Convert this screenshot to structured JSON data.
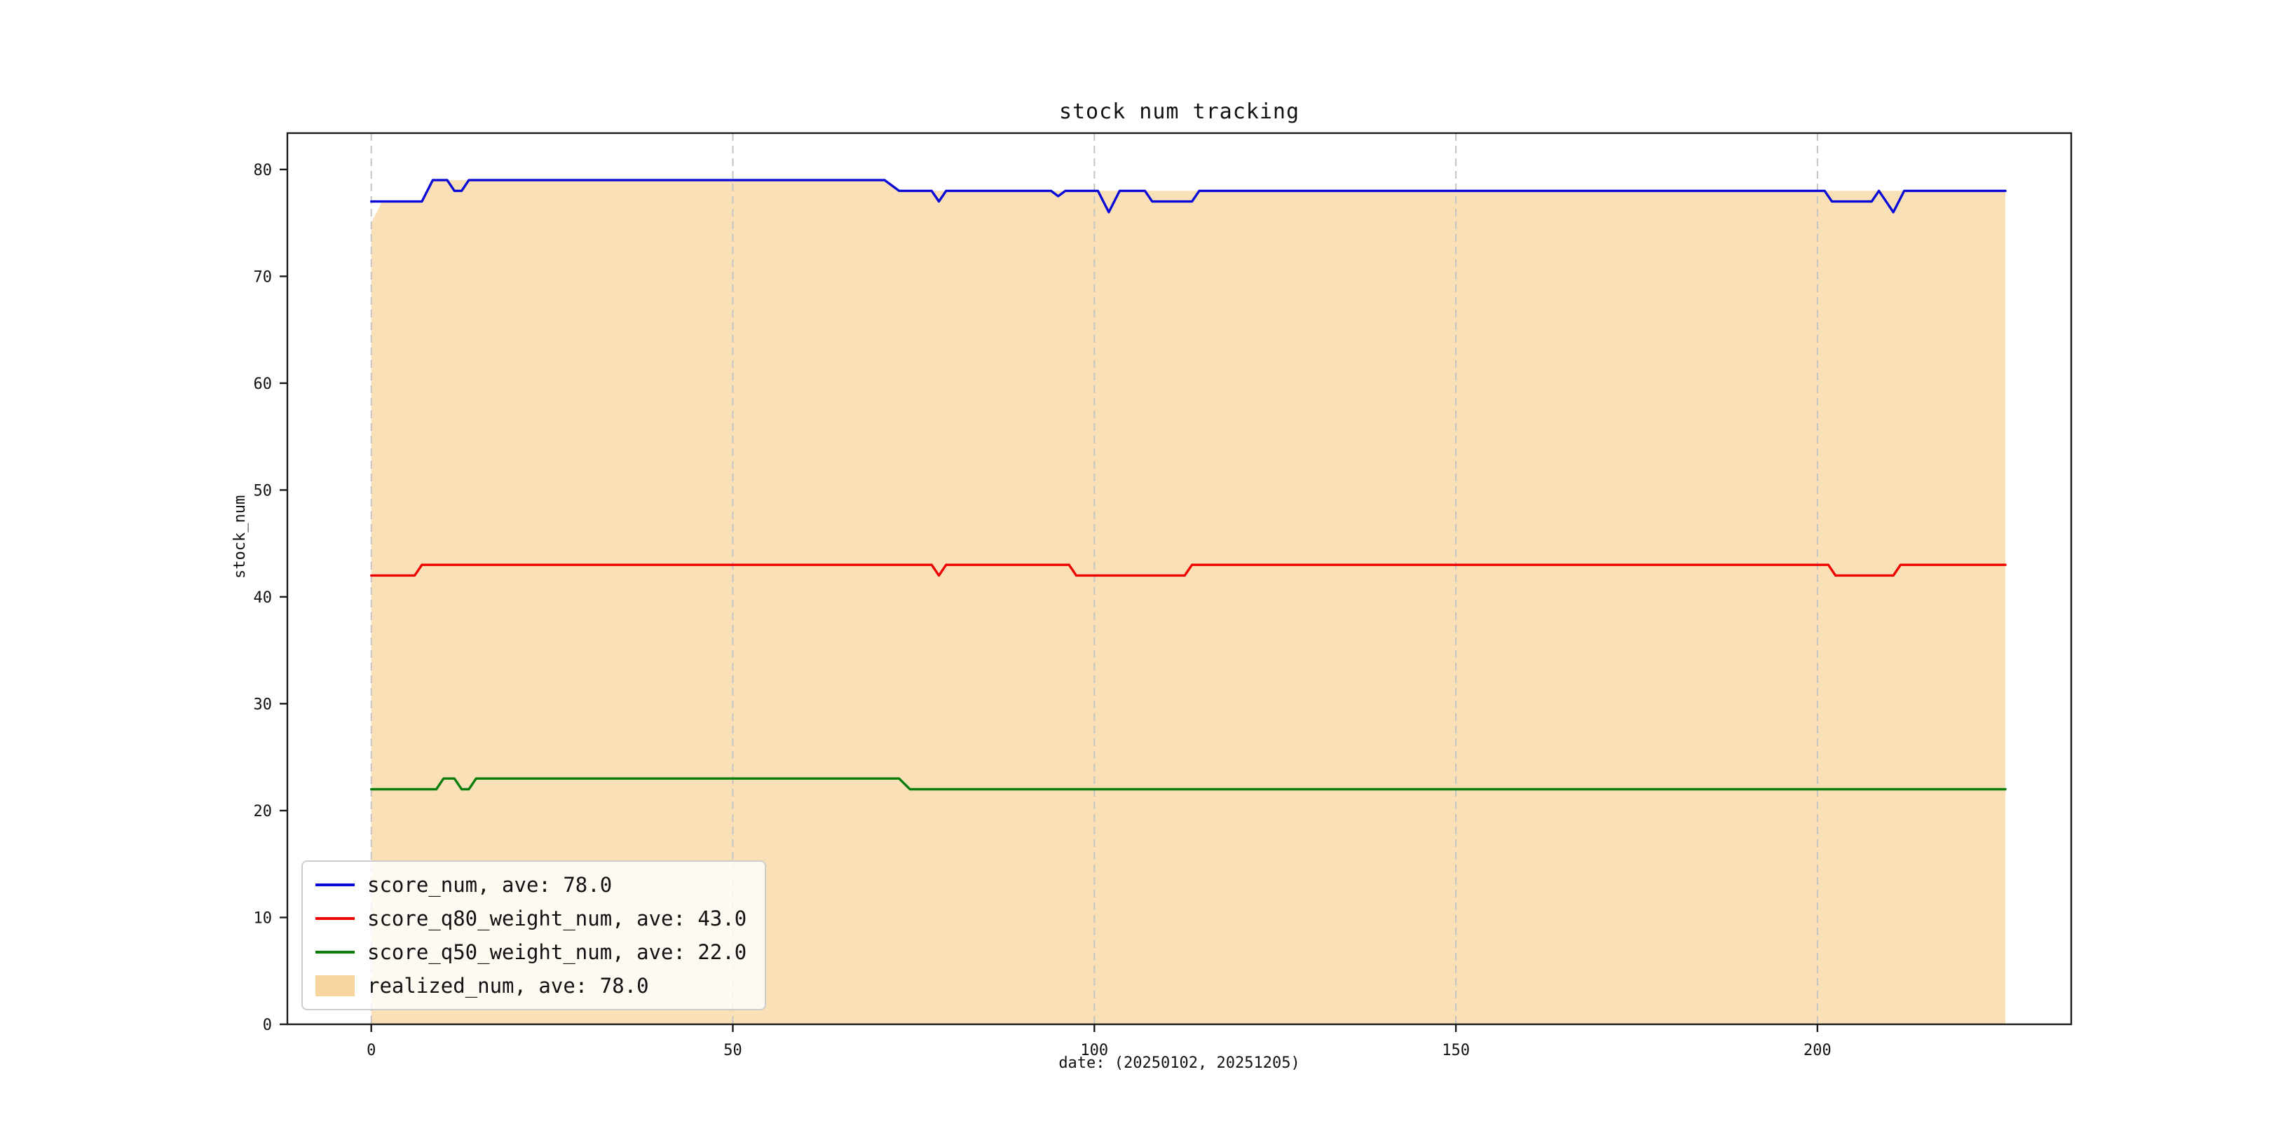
{
  "chart_data": {
    "type": "line",
    "title": "stock num tracking",
    "xlabel": "date: (20250102, 20251205)",
    "ylabel": "stock_num",
    "xlim": [
      -11.6,
      235.1
    ],
    "ylim": [
      0,
      83.4
    ],
    "xticks": [
      0,
      50,
      100,
      150,
      200
    ],
    "yticks": [
      0,
      10,
      20,
      30,
      40,
      50,
      60,
      70,
      80
    ],
    "grid": {
      "x": true,
      "y": false,
      "style": "dashed",
      "color": "#c4c4c4"
    },
    "area": {
      "name": "realized_num",
      "label": "realized_num, ave: 78.0",
      "color": "#f6c77c",
      "opacity": 0.55,
      "points": [
        [
          0,
          75
        ],
        [
          1.5,
          77
        ],
        [
          7,
          77
        ],
        [
          8.5,
          79
        ],
        [
          71,
          79
        ],
        [
          73,
          78
        ],
        [
          226,
          78
        ]
      ]
    },
    "series": [
      {
        "name": "score_num",
        "label": "score_num, ave: 78.0",
        "color": "#0a0ad8",
        "points": [
          [
            0,
            77
          ],
          [
            7,
            77
          ],
          [
            8.5,
            79
          ],
          [
            10.5,
            79
          ],
          [
            11.5,
            78
          ],
          [
            12.5,
            78
          ],
          [
            13.5,
            79
          ],
          [
            71,
            79
          ],
          [
            73,
            78
          ],
          [
            77.5,
            78
          ],
          [
            78.5,
            77
          ],
          [
            79.5,
            78
          ],
          [
            94,
            78
          ],
          [
            95,
            77.5
          ],
          [
            96,
            78
          ],
          [
            100.5,
            78
          ],
          [
            102,
            76
          ],
          [
            103.5,
            78
          ],
          [
            107,
            78
          ],
          [
            108,
            77
          ],
          [
            113.5,
            77
          ],
          [
            114.5,
            78
          ],
          [
            201,
            78
          ],
          [
            202,
            77
          ],
          [
            207.5,
            77
          ],
          [
            208.5,
            78
          ],
          [
            209.5,
            77
          ],
          [
            210.5,
            76
          ],
          [
            212,
            78
          ],
          [
            226,
            78
          ]
        ]
      },
      {
        "name": "score_q80_weight_num",
        "label": "score_q80_weight_num, ave: 43.0",
        "color": "#ee0000",
        "points": [
          [
            0,
            42
          ],
          [
            6,
            42
          ],
          [
            7,
            43
          ],
          [
            77.5,
            43
          ],
          [
            78.5,
            42
          ],
          [
            79.5,
            43
          ],
          [
            96.5,
            43
          ],
          [
            97.5,
            42
          ],
          [
            112.5,
            42
          ],
          [
            113.5,
            43
          ],
          [
            201.5,
            43
          ],
          [
            202.5,
            42
          ],
          [
            210.5,
            42
          ],
          [
            211.5,
            43
          ],
          [
            226,
            43
          ]
        ]
      },
      {
        "name": "score_q50_weight_num",
        "label": "score_q50_weight_num, ave: 22.0",
        "color": "#0b7d0b",
        "points": [
          [
            0,
            22
          ],
          [
            9,
            22
          ],
          [
            10,
            23
          ],
          [
            11.5,
            23
          ],
          [
            12.5,
            22
          ],
          [
            13.5,
            22
          ],
          [
            14.5,
            23
          ],
          [
            73,
            23
          ],
          [
            74.5,
            22
          ],
          [
            226,
            22
          ]
        ]
      }
    ],
    "legend_position": "lower left"
  }
}
